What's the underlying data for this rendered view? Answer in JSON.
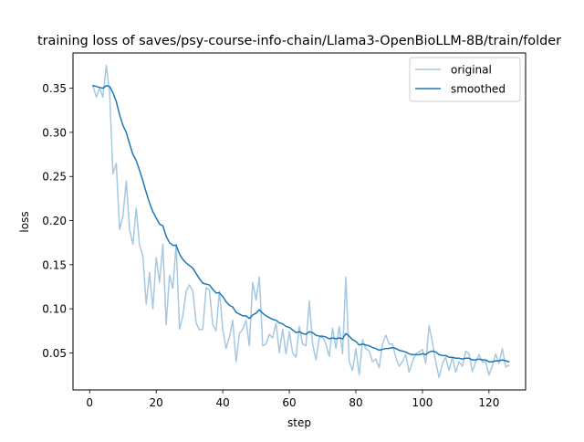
{
  "chart_data": {
    "type": "line",
    "title": "training loss of saves/psy-course-info-chain/Llama3-OpenBioLLM-8B/train/folder",
    "xlabel": "step",
    "ylabel": "loss",
    "xlim": [
      -5,
      131
    ],
    "ylim": [
      0.008,
      0.39
    ],
    "xticks": [
      0,
      20,
      40,
      60,
      80,
      100,
      120
    ],
    "yticks": [
      0.05,
      0.1,
      0.15,
      0.2,
      0.25,
      0.3,
      0.35
    ],
    "legend_position": "top-right",
    "series": [
      {
        "name": "original",
        "color": "#a6c8e0",
        "points": [
          [
            1,
            0.353
          ],
          [
            2,
            0.34
          ],
          [
            3,
            0.35
          ],
          [
            4,
            0.34
          ],
          [
            5,
            0.376
          ],
          [
            6,
            0.345
          ],
          [
            7,
            0.253
          ],
          [
            8,
            0.265
          ],
          [
            9,
            0.19
          ],
          [
            10,
            0.205
          ],
          [
            11,
            0.245
          ],
          [
            12,
            0.19
          ],
          [
            13,
            0.173
          ],
          [
            14,
            0.214
          ],
          [
            15,
            0.172
          ],
          [
            16,
            0.16
          ],
          [
            17,
            0.105
          ],
          [
            18,
            0.141
          ],
          [
            19,
            0.1
          ],
          [
            20,
            0.158
          ],
          [
            21,
            0.13
          ],
          [
            22,
            0.173
          ],
          [
            23,
            0.082
          ],
          [
            24,
            0.138
          ],
          [
            25,
            0.123
          ],
          [
            26,
            0.173
          ],
          [
            27,
            0.077
          ],
          [
            28,
            0.092
          ],
          [
            29,
            0.12
          ],
          [
            30,
            0.127
          ],
          [
            31,
            0.12
          ],
          [
            32,
            0.084
          ],
          [
            33,
            0.076
          ],
          [
            34,
            0.077
          ],
          [
            35,
            0.124
          ],
          [
            36,
            0.121
          ],
          [
            37,
            0.082
          ],
          [
            38,
            0.075
          ],
          [
            39,
            0.12
          ],
          [
            40,
            0.077
          ],
          [
            41,
            0.055
          ],
          [
            42,
            0.068
          ],
          [
            43,
            0.087
          ],
          [
            44,
            0.04
          ],
          [
            45,
            0.072
          ],
          [
            46,
            0.077
          ],
          [
            47,
            0.087
          ],
          [
            48,
            0.058
          ],
          [
            49,
            0.13
          ],
          [
            50,
            0.11
          ],
          [
            51,
            0.136
          ],
          [
            52,
            0.058
          ],
          [
            53,
            0.06
          ],
          [
            54,
            0.071
          ],
          [
            55,
            0.067
          ],
          [
            56,
            0.084
          ],
          [
            57,
            0.05
          ],
          [
            58,
            0.077
          ],
          [
            59,
            0.049
          ],
          [
            60,
            0.074
          ],
          [
            61,
            0.05
          ],
          [
            62,
            0.045
          ],
          [
            63,
            0.08
          ],
          [
            64,
            0.06
          ],
          [
            65,
            0.058
          ],
          [
            66,
            0.109
          ],
          [
            67,
            0.06
          ],
          [
            68,
            0.042
          ],
          [
            69,
            0.067
          ],
          [
            70,
            0.068
          ],
          [
            71,
            0.06
          ],
          [
            72,
            0.046
          ],
          [
            73,
            0.078
          ],
          [
            74,
            0.055
          ],
          [
            75,
            0.08
          ],
          [
            76,
            0.049
          ],
          [
            77,
            0.136
          ],
          [
            78,
            0.04
          ],
          [
            79,
            0.03
          ],
          [
            80,
            0.055
          ],
          [
            81,
            0.025
          ],
          [
            82,
            0.065
          ],
          [
            83,
            0.055
          ],
          [
            84,
            0.052
          ],
          [
            85,
            0.04
          ],
          [
            86,
            0.043
          ],
          [
            87,
            0.033
          ],
          [
            88,
            0.06
          ],
          [
            89,
            0.07
          ],
          [
            90,
            0.06
          ],
          [
            91,
            0.06
          ],
          [
            92,
            0.045
          ],
          [
            93,
            0.035
          ],
          [
            94,
            0.04
          ],
          [
            95,
            0.048
          ],
          [
            96,
            0.028
          ],
          [
            97,
            0.04
          ],
          [
            98,
            0.049
          ],
          [
            99,
            0.051
          ],
          [
            100,
            0.054
          ],
          [
            101,
            0.038
          ],
          [
            102,
            0.081
          ],
          [
            103,
            0.062
          ],
          [
            104,
            0.04
          ],
          [
            105,
            0.022
          ],
          [
            106,
            0.038
          ],
          [
            107,
            0.045
          ],
          [
            108,
            0.03
          ],
          [
            109,
            0.045
          ],
          [
            110,
            0.028
          ],
          [
            111,
            0.04
          ],
          [
            112,
            0.035
          ],
          [
            113,
            0.052
          ],
          [
            114,
            0.049
          ],
          [
            115,
            0.029
          ],
          [
            116,
            0.04
          ],
          [
            117,
            0.048
          ],
          [
            118,
            0.04
          ],
          [
            119,
            0.04
          ],
          [
            120,
            0.025
          ],
          [
            121,
            0.035
          ],
          [
            122,
            0.049
          ],
          [
            123,
            0.038
          ],
          [
            124,
            0.055
          ],
          [
            125,
            0.034
          ],
          [
            126,
            0.036
          ]
        ]
      },
      {
        "name": "smoothed",
        "color": "#1f77b4",
        "points": [
          [
            1,
            0.353
          ],
          [
            2,
            0.352
          ],
          [
            3,
            0.351
          ],
          [
            4,
            0.35
          ],
          [
            5,
            0.353
          ],
          [
            6,
            0.352
          ],
          [
            7,
            0.345
          ],
          [
            8,
            0.335
          ],
          [
            9,
            0.32
          ],
          [
            10,
            0.308
          ],
          [
            11,
            0.3
          ],
          [
            12,
            0.287
          ],
          [
            13,
            0.275
          ],
          [
            14,
            0.268
          ],
          [
            15,
            0.257
          ],
          [
            16,
            0.245
          ],
          [
            17,
            0.232
          ],
          [
            18,
            0.22
          ],
          [
            19,
            0.21
          ],
          [
            20,
            0.203
          ],
          [
            21,
            0.196
          ],
          [
            22,
            0.194
          ],
          [
            23,
            0.182
          ],
          [
            24,
            0.175
          ],
          [
            25,
            0.172
          ],
          [
            26,
            0.172
          ],
          [
            27,
            0.162
          ],
          [
            28,
            0.156
          ],
          [
            29,
            0.152
          ],
          [
            30,
            0.149
          ],
          [
            31,
            0.146
          ],
          [
            32,
            0.14
          ],
          [
            33,
            0.134
          ],
          [
            34,
            0.129
          ],
          [
            35,
            0.128
          ],
          [
            36,
            0.127
          ],
          [
            37,
            0.122
          ],
          [
            38,
            0.118
          ],
          [
            39,
            0.118
          ],
          [
            40,
            0.114
          ],
          [
            41,
            0.108
          ],
          [
            42,
            0.104
          ],
          [
            43,
            0.102
          ],
          [
            44,
            0.096
          ],
          [
            45,
            0.094
          ],
          [
            46,
            0.092
          ],
          [
            47,
            0.092
          ],
          [
            48,
            0.089
          ],
          [
            49,
            0.093
          ],
          [
            50,
            0.095
          ],
          [
            51,
            0.099
          ],
          [
            52,
            0.095
          ],
          [
            53,
            0.092
          ],
          [
            54,
            0.09
          ],
          [
            55,
            0.088
          ],
          [
            56,
            0.087
          ],
          [
            57,
            0.084
          ],
          [
            58,
            0.083
          ],
          [
            59,
            0.08
          ],
          [
            60,
            0.079
          ],
          [
            61,
            0.076
          ],
          [
            62,
            0.073
          ],
          [
            63,
            0.074
          ],
          [
            64,
            0.072
          ],
          [
            65,
            0.071
          ],
          [
            66,
            0.074
          ],
          [
            67,
            0.073
          ],
          [
            68,
            0.07
          ],
          [
            69,
            0.069
          ],
          [
            70,
            0.069
          ],
          [
            71,
            0.068
          ],
          [
            72,
            0.066
          ],
          [
            73,
            0.067
          ],
          [
            74,
            0.066
          ],
          [
            75,
            0.067
          ],
          [
            76,
            0.066
          ],
          [
            77,
            0.072
          ],
          [
            78,
            0.069
          ],
          [
            79,
            0.065
          ],
          [
            80,
            0.063
          ],
          [
            81,
            0.059
          ],
          [
            82,
            0.06
          ],
          [
            83,
            0.059
          ],
          [
            84,
            0.058
          ],
          [
            85,
            0.056
          ],
          [
            86,
            0.055
          ],
          [
            87,
            0.053
          ],
          [
            88,
            0.054
          ],
          [
            89,
            0.055
          ],
          [
            90,
            0.055
          ],
          [
            91,
            0.056
          ],
          [
            92,
            0.055
          ],
          [
            93,
            0.053
          ],
          [
            94,
            0.052
          ],
          [
            95,
            0.051
          ],
          [
            96,
            0.049
          ],
          [
            97,
            0.048
          ],
          [
            98,
            0.048
          ],
          [
            99,
            0.048
          ],
          [
            100,
            0.049
          ],
          [
            101,
            0.048
          ],
          [
            102,
            0.051
          ],
          [
            103,
            0.052
          ],
          [
            104,
            0.051
          ],
          [
            105,
            0.048
          ],
          [
            106,
            0.047
          ],
          [
            107,
            0.047
          ],
          [
            108,
            0.045
          ],
          [
            109,
            0.045
          ],
          [
            110,
            0.044
          ],
          [
            111,
            0.044
          ],
          [
            112,
            0.043
          ],
          [
            113,
            0.044
          ],
          [
            114,
            0.044
          ],
          [
            115,
            0.042
          ],
          [
            116,
            0.042
          ],
          [
            117,
            0.043
          ],
          [
            118,
            0.042
          ],
          [
            119,
            0.042
          ],
          [
            120,
            0.04
          ],
          [
            121,
            0.04
          ],
          [
            122,
            0.041
          ],
          [
            123,
            0.041
          ],
          [
            124,
            0.042
          ],
          [
            125,
            0.041
          ],
          [
            126,
            0.04
          ]
        ]
      }
    ]
  }
}
